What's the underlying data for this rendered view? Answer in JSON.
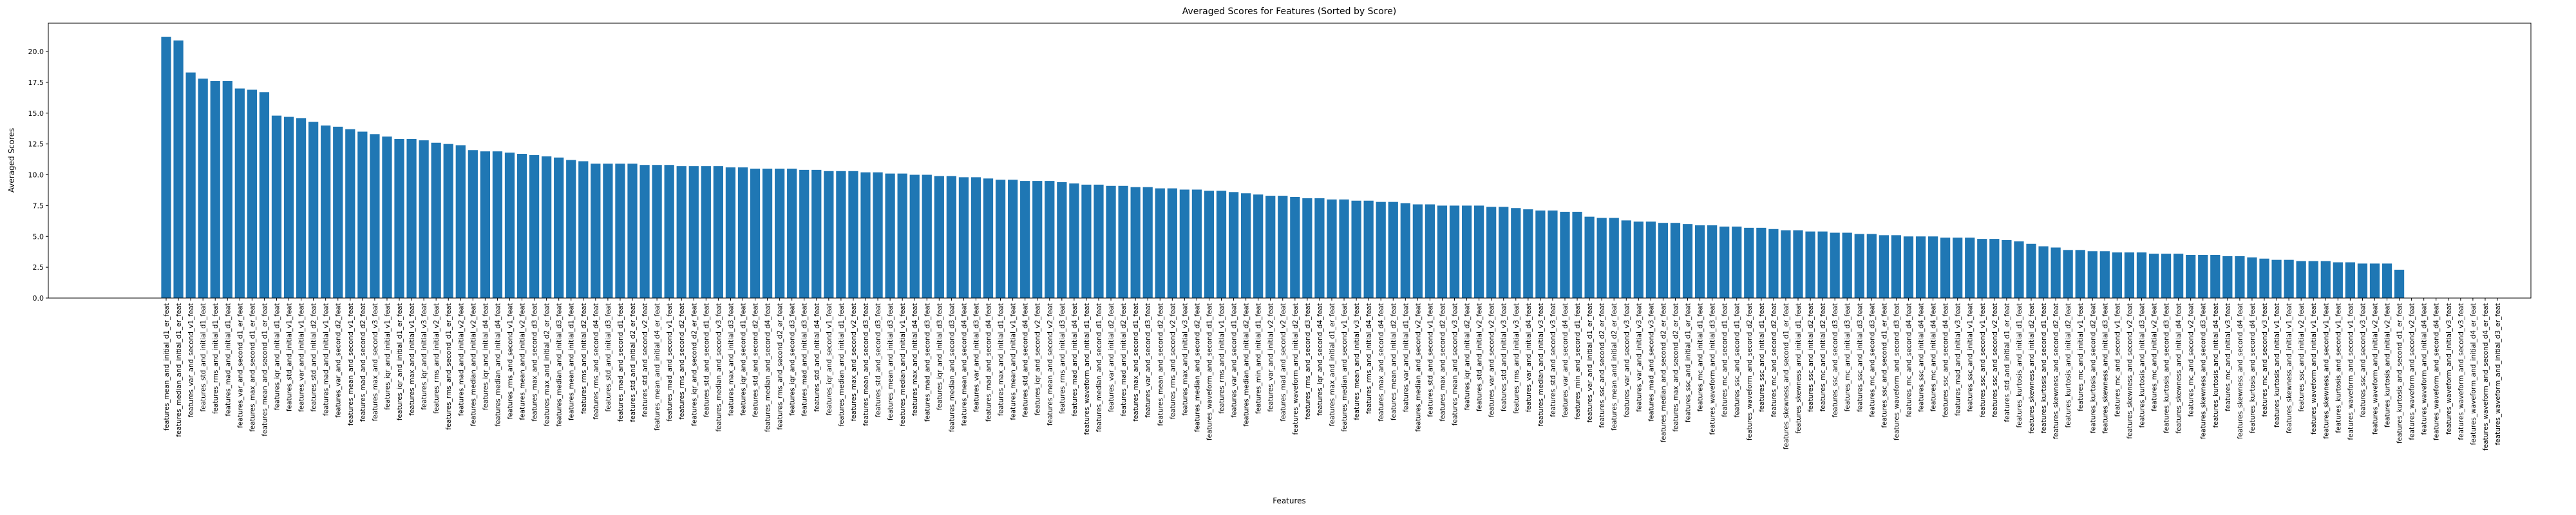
{
  "chart_data": {
    "type": "bar",
    "title": "Averaged Scores for Features (Sorted by Score)",
    "xlabel": "Features",
    "ylabel": "Averaged Scores",
    "color": "#1f77b4",
    "ylim": [
      0,
      22.3
    ],
    "yticks": [
      {
        "value": 0,
        "label": "0.0"
      },
      2.5,
      {
        "value": 5,
        "label": "5.0"
      },
      7.5,
      {
        "value": 10,
        "label": "10.0"
      },
      12.5,
      {
        "value": 15,
        "label": "15.0"
      },
      17.5,
      {
        "value": 20,
        "label": "20.0"
      }
    ],
    "grid": false,
    "categories": [
      "features_mean_and_initial_d1_er_feat",
      "features_median_and_initial_d1_er_feat",
      "features_var_and_second_v1_feat",
      "features_std_and_initial_d1_feat",
      "features_rms_and_initial_d1_feat",
      "features_mad_and_initial_d1_feat",
      "features_var_and_second_d1_er_feat",
      "features_max_and_second_d1_er_feat",
      "features_mean_and_second_d1_er_feat",
      "features_iqr_and_initial_d1_feat",
      "features_std_and_initial_v1_feat",
      "features_var_and_initial_v1_feat",
      "features_std_and_initial_d2_feat",
      "features_mad_and_initial_v1_feat",
      "features_var_and_second_d2_feat",
      "features_mean_and_second_v1_feat",
      "features_mad_and_second_d2_feat",
      "features_max_and_second_v3_feat",
      "features_iqr_and_initial_v1_feat",
      "features_iqr_and_initial_d1_er_feat",
      "features_max_and_initial_v1_feat",
      "features_iqr_and_initial_v3_feat",
      "features_rms_and_initial_v2_feat",
      "features_rms_and_second_d1_er_feat",
      "features_mad_and_initial_v2_feat",
      "features_median_and_initial_v2_feat",
      "features_iqr_and_initial_d4_feat",
      "features_median_and_initial_d4_feat",
      "features_rms_and_second_v1_feat",
      "features_mean_and_initial_v2_feat",
      "features_max_and_second_d3_feat",
      "features_max_and_initial_d2_er_feat",
      "features_median_and_initial_d3_feat",
      "features_mean_and_initial_d1_feat",
      "features_rms_and_initial_d2_feat",
      "features_rms_and_second_d4_feat",
      "features_std_and_initial_d3_feat",
      "features_mad_and_second_d1_feat",
      "features_std_and_initial_d2_er_feat",
      "features_std_and_second_v2_feat",
      "features_mean_and_initial_d4_er_feat",
      "features_mad_and_second_v1_feat",
      "features_rms_and_second_d2_feat",
      "features_iqr_and_second_d2_er_feat",
      "features_std_and_second_d1_feat",
      "features_median_and_second_v3_feat",
      "features_max_and_initial_d3_feat",
      "features_iqr_and_second_d1_feat",
      "features_std_and_second_d2_feat",
      "features_median_and_second_d4_feat",
      "features_rms_and_second_d2_er_feat",
      "features_iqr_and_second_d3_feat",
      "features_mad_and_initial_d3_feat",
      "features_std_and_initial_d4_feat",
      "features_iqr_and_second_v1_feat",
      "features_median_and_initial_d1_feat",
      "features_max_and_second_v2_feat",
      "features_mean_and_second_d3_feat",
      "features_std_and_second_d3_feat",
      "features_mean_and_initial_d3_feat",
      "features_median_and_initial_v1_feat",
      "features_max_and_initial_d4_feat",
      "features_mad_and_second_d3_feat",
      "features_iqr_and_initial_d3_feat",
      "features_median_and_second_d3_feat",
      "features_mean_and_second_d4_feat",
      "features_var_and_initial_d3_feat",
      "features_mad_and_second_d4_feat",
      "features_max_and_initial_d1_feat",
      "features_mean_and_initial_v1_feat",
      "features_std_and_second_d4_feat",
      "features_iqr_and_second_v2_feat",
      "features_mean_and_second_v2_feat",
      "features_rms_and_initial_d3_feat",
      "features_mad_and_initial_d4_feat",
      "features_waveform_and_initial_d1_feat",
      "features_median_and_second_d1_feat",
      "features_var_and_initial_d2_feat",
      "features_mad_and_initial_d2_feat",
      "features_max_and_second_d1_feat",
      "features_var_and_second_d3_feat",
      "features_mean_and_second_d2_feat",
      "features_rms_and_second_v2_feat",
      "features_max_and_initial_v3_feat",
      "features_median_and_second_d2_feat",
      "features_waveform_and_second_d1_feat",
      "features_rms_and_initial_v1_feat",
      "features_var_and_second_d1_feat",
      "features_median_and_initial_d2_feat",
      "features_min_and_initial_d1_feat",
      "features_var_and_initial_v2_feat",
      "features_mad_and_second_v2_feat",
      "features_waveform_and_initial_d2_feat",
      "features_rms_and_second_d3_feat",
      "features_iqr_and_second_d4_feat",
      "features_max_and_initial_d1_er_feat",
      "features_median_and_second_v1_feat",
      "features_mean_and_initial_v3_feat",
      "features_rms_and_initial_d4_feat",
      "features_max_and_second_d4_feat",
      "features_mean_and_initial_d2_feat",
      "features_var_and_initial_d1_feat",
      "features_median_and_second_v2_feat",
      "features_std_and_second_v1_feat",
      "features_max_and_second_d2_feat",
      "features_mean_and_second_v3_feat",
      "features_iqr_and_initial_d2_feat",
      "features_std_and_initial_v2_feat",
      "features_var_and_second_v2_feat",
      "features_std_and_initial_v3_feat",
      "features_rms_and_initial_v3_feat",
      "features_var_and_initial_d4_feat",
      "features_median_and_initial_v3_feat",
      "features_std_and_second_v3_feat",
      "features_var_and_second_d4_feat",
      "features_min_and_second_d1_feat",
      "features_var_and_initial_d1_er_feat",
      "features_ssc_and_second_d2_er_feat",
      "features_mean_and_initial_d2_er_feat",
      "features_var_and_second_v3_feat",
      "features_var_and_initial_v3_feat",
      "features_mad_and_second_v3_feat",
      "features_median_and_second_d2_er_feat",
      "features_max_and_second_d2_er_feat",
      "features_ssc_and_initial_d1_er_feat",
      "features_mc_and_initial_d1_feat",
      "features_waveform_and_initial_d3_feat",
      "features_mc_and_second_d1_feat",
      "features_ssc_and_second_d1_feat",
      "features_waveform_and_second_d2_feat",
      "features_ssc_and_initial_d1_feat",
      "features_mc_and_second_d2_feat",
      "features_skewness_and_second_d1_er_feat",
      "features_skewness_and_initial_d1_feat",
      "features_ssc_and_initial_d2_feat",
      "features_mc_and_initial_d2_feat",
      "features_ssc_and_second_d3_feat",
      "features_mc_and_initial_d3_feat",
      "features_ssc_and_initial_d3_feat",
      "features_mc_and_second_d3_feat",
      "features_ssc_and_second_d1_er_feat",
      "features_waveform_and_second_d3_feat",
      "features_mc_and_second_d4_feat",
      "features_ssc_and_initial_d4_feat",
      "features_mc_and_initial_d4_feat",
      "features_ssc_and_second_d4_feat",
      "features_mad_and_initial_v3_feat",
      "features_ssc_and_initial_v1_feat",
      "features_ssc_and_second_v1_feat",
      "features_ssc_and_second_v2_feat",
      "features_std_and_initial_d1_er_feat",
      "features_kurtosis_and_initial_d1_feat",
      "features_skewness_and_initial_d2_feat",
      "features_kurtosis_and_second_d1_feat",
      "features_skewness_and_second_d2_feat",
      "features_kurtosis_and_initial_d2_feat",
      "features_mc_and_initial_v1_feat",
      "features_kurtosis_and_second_d2_feat",
      "features_skewness_and_initial_d3_feat",
      "features_mc_and_second_v1_feat",
      "features_skewness_and_second_v2_feat",
      "features_kurtosis_and_initial_d3_feat",
      "features_mc_and_initial_v2_feat",
      "features_kurtosis_and_second_d3_feat",
      "features_skewness_and_initial_d4_feat",
      "features_mc_and_second_v2_feat",
      "features_skewness_and_second_d3_feat",
      "features_kurtosis_and_initial_d4_feat",
      "features_mc_and_initial_v3_feat",
      "features_skewness_and_second_d4_feat",
      "features_kurtosis_and_second_d4_feat",
      "features_mc_and_second_v3_feat",
      "features_kurtosis_and_initial_v1_feat",
      "features_skewness_and_initial_v1_feat",
      "features_ssc_and_initial_v2_feat",
      "features_waveform_and_initial_v1_feat",
      "features_skewness_and_second_v1_feat",
      "features_kurtosis_and_second_v1_feat",
      "features_waveform_and_second_v1_feat",
      "features_ssc_and_second_v3_feat",
      "features_waveform_and_initial_v2_feat",
      "features_kurtosis_and_initial_v2_feat",
      "features_kurtosis_and_second_d1_er_feat",
      "features_waveform_and_second_v2_feat",
      "features_waveform_and_initial_d4_feat",
      "features_waveform_and_second_d4_feat",
      "features_waveform_and_initial_v3_feat",
      "features_waveform_and_second_v3_feat",
      "features_waveform_and_initial_d4_er_feat",
      "features_waveform_and_second_d4_er_feat",
      "features_waveform_and_initial_d3_er_feat"
    ],
    "values": [
      21.2,
      20.9,
      18.3,
      17.8,
      17.6,
      17.6,
      17.0,
      16.9,
      16.7,
      14.8,
      14.7,
      14.6,
      14.3,
      14.0,
      13.9,
      13.7,
      13.5,
      13.3,
      13.1,
      12.9,
      12.9,
      12.8,
      12.6,
      12.5,
      12.4,
      12.0,
      11.9,
      11.9,
      11.8,
      11.7,
      11.6,
      11.5,
      11.4,
      11.2,
      11.1,
      10.9,
      10.9,
      10.9,
      10.9,
      10.8,
      10.8,
      10.8,
      10.7,
      10.7,
      10.7,
      10.7,
      10.6,
      10.6,
      10.5,
      10.5,
      10.5,
      10.5,
      10.4,
      10.4,
      10.3,
      10.3,
      10.3,
      10.2,
      10.2,
      10.1,
      10.1,
      10.0,
      10.0,
      9.9,
      9.9,
      9.8,
      9.8,
      9.7,
      9.6,
      9.6,
      9.5,
      9.5,
      9.5,
      9.4,
      9.3,
      9.2,
      9.2,
      9.1,
      9.1,
      9.0,
      9.0,
      8.9,
      8.9,
      8.8,
      8.8,
      8.7,
      8.7,
      8.6,
      8.5,
      8.4,
      8.3,
      8.3,
      8.2,
      8.1,
      8.1,
      8.0,
      8.0,
      7.9,
      7.9,
      7.8,
      7.8,
      7.7,
      7.6,
      7.6,
      7.5,
      7.5,
      7.5,
      7.5,
      7.4,
      7.4,
      7.3,
      7.2,
      7.1,
      7.1,
      7.0,
      7.0,
      6.6,
      6.5,
      6.5,
      6.3,
      6.2,
      6.2,
      6.1,
      6.1,
      6.0,
      5.9,
      5.9,
      5.8,
      5.8,
      5.7,
      5.7,
      5.6,
      5.5,
      5.5,
      5.4,
      5.4,
      5.3,
      5.3,
      5.2,
      5.2,
      5.1,
      5.1,
      5.0,
      5.0,
      5.0,
      4.9,
      4.9,
      4.9,
      4.8,
      4.8,
      4.7,
      4.6,
      4.4,
      4.2,
      4.1,
      3.9,
      3.9,
      3.8,
      3.8,
      3.7,
      3.7,
      3.7,
      3.6,
      3.6,
      3.6,
      3.5,
      3.5,
      3.5,
      3.4,
      3.4,
      3.3,
      3.2,
      3.1,
      3.1,
      3.0,
      3.0,
      3.0,
      2.9,
      2.9,
      2.8,
      2.8,
      2.8,
      2.3,
      0,
      0,
      0,
      0,
      0,
      0,
      0,
      0
    ]
  }
}
